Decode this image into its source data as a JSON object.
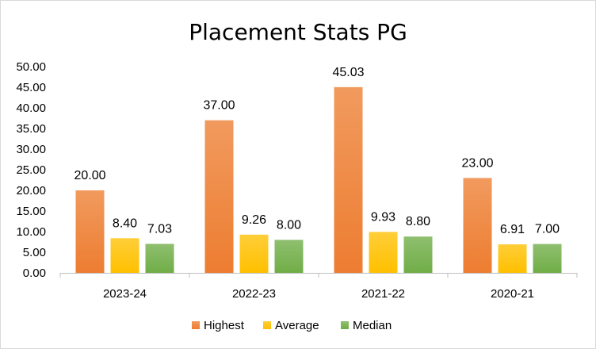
{
  "chart_data": {
    "type": "bar",
    "title": "Placement Stats PG",
    "xlabel": "",
    "ylabel": "",
    "categories": [
      "2023-24",
      "2022-23",
      "2021-22",
      "2020-21"
    ],
    "series": [
      {
        "name": "Highest",
        "values": [
          20.0,
          37.0,
          45.03,
          23.0
        ],
        "color": "#ed7d31",
        "labels": [
          "20.00",
          "37.00",
          "45.03",
          "23.00"
        ]
      },
      {
        "name": "Average",
        "values": [
          8.4,
          9.26,
          9.93,
          6.91
        ],
        "color": "#ffc000",
        "labels": [
          "8.40",
          "9.26",
          "9.93",
          "6.91"
        ]
      },
      {
        "name": "Median",
        "values": [
          7.03,
          8.0,
          8.8,
          7.0
        ],
        "color": "#70ad47",
        "labels": [
          "7.03",
          "8.00",
          "8.80",
          "7.00"
        ]
      }
    ],
    "ylim": [
      0,
      50
    ],
    "yticks": [
      "0.00",
      "5.00",
      "10.00",
      "15.00",
      "20.00",
      "25.00",
      "30.00",
      "35.00",
      "40.00",
      "45.00",
      "50.00"
    ],
    "grid": false,
    "legend_position": "bottom"
  }
}
